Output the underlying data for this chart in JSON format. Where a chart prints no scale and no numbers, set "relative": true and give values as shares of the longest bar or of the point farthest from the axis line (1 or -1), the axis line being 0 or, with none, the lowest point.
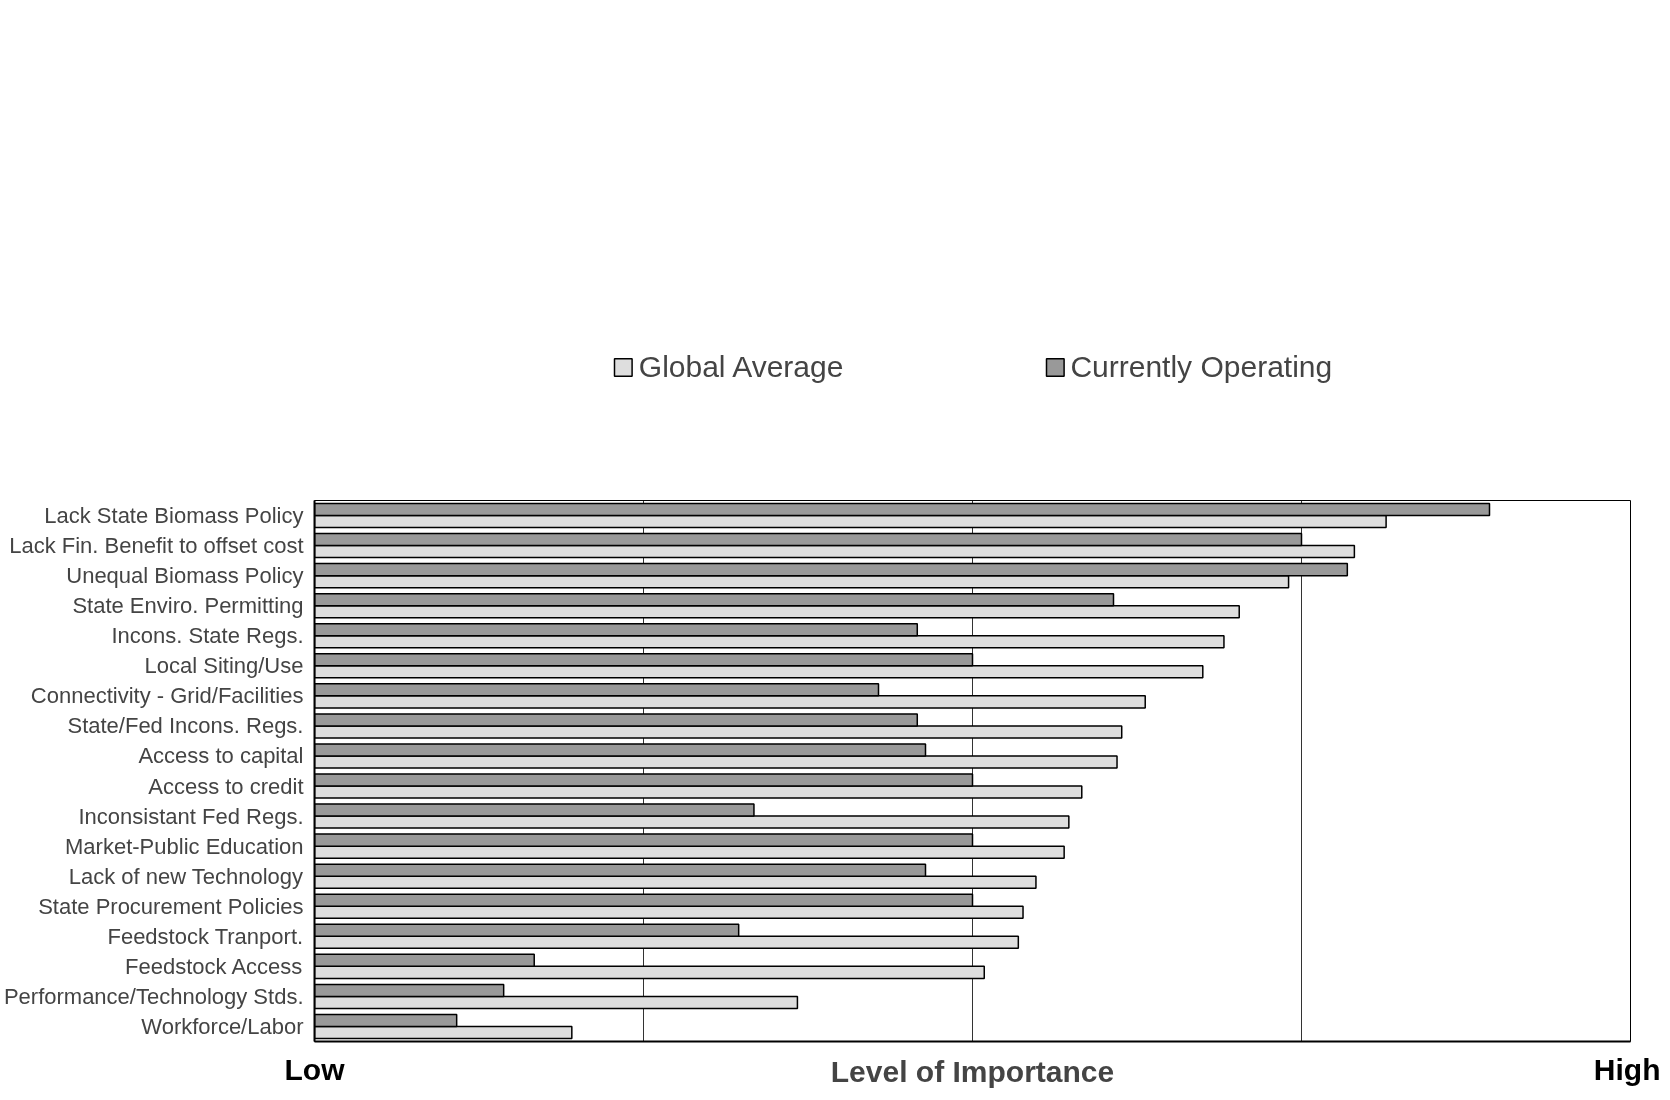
{
  "chart_data": {
    "type": "bar",
    "orientation": "horizontal",
    "relative": true,
    "xlabel": "Level of Importance",
    "annotations": [
      "Low",
      "High"
    ],
    "legend": "top",
    "grid": "x",
    "categories": [
      "Lack State Biomass Policy",
      "Lack Fin. Benefit to offset cost",
      "Unequal Biomass Policy",
      "State Enviro. Permitting",
      "Incons. State Regs.",
      "Local Siting/Use",
      "Connectivity - Grid/Facilities",
      "State/Fed Incons. Regs.",
      "Access to capital",
      "Access to credit",
      "Inconsistant Fed Regs.",
      "Market-Public Education",
      "Lack of new Technology",
      "State Procurement Policies",
      "Feedstock Tranport.",
      "Feedstock Access",
      "Performance/Technology Stds.",
      "Workforce/Labor"
    ],
    "series": [
      {
        "name": "Global Average",
        "color": "#dedede",
        "values": [
          0.912,
          0.885,
          0.829,
          0.787,
          0.774,
          0.756,
          0.707,
          0.687,
          0.683,
          0.653,
          0.642,
          0.638,
          0.614,
          0.603,
          0.599,
          0.57,
          0.411,
          0.219
        ]
      },
      {
        "name": "Currently Operating",
        "color": "#999999",
        "values": [
          1.0,
          0.84,
          0.879,
          0.68,
          0.513,
          0.56,
          0.48,
          0.513,
          0.52,
          0.56,
          0.374,
          0.56,
          0.52,
          0.56,
          0.361,
          0.187,
          0.161,
          0.121
        ]
      }
    ]
  }
}
